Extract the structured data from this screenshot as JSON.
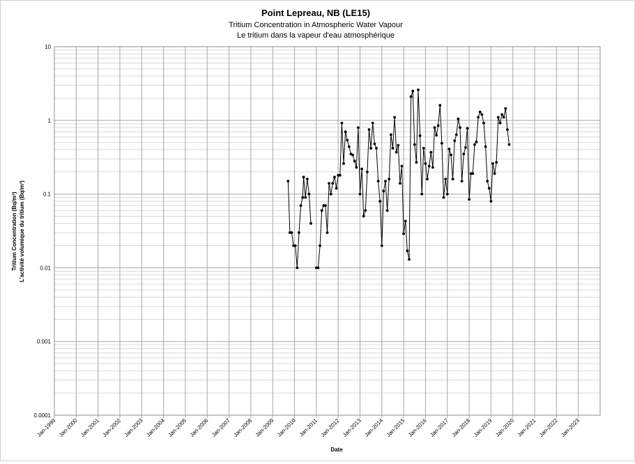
{
  "chart_data": {
    "type": "line",
    "title": "Point Lepreau, NB (LE15)",
    "subtitle": [
      "Tritium Concentration in Atmospheric Water Vapour",
      "Le tritium dans la vapeur d'eau atmosphérique"
    ],
    "xlabel": "Date",
    "ylabel": [
      "Tritium Concentration (Bq/m³)",
      "L'activité volumique du tritium (Bq/m³)"
    ],
    "yscale": "log",
    "ylim": [
      0.0001,
      10
    ],
    "yticks": [
      {
        "value": 10,
        "label": "10"
      },
      {
        "value": 1,
        "label": "1"
      },
      {
        "value": 0.1,
        "label": "0.1"
      },
      {
        "value": 0.01,
        "label": "0.01"
      },
      {
        "value": 0.001,
        "label": "0.001"
      },
      {
        "value": 0.0001,
        "label": "0.0001"
      }
    ],
    "xlim": [
      "Jan-1999",
      "Jan-2024"
    ],
    "xticks": [
      "Jan-1999",
      "Jan-2000",
      "Jan-2001",
      "Jan-2002",
      "Jan-2003",
      "Jan-2004",
      "Jan-2005",
      "Jan-2006",
      "Jan-2007",
      "Jan-2008",
      "Jan-2009",
      "Jan-2010",
      "Jan-2011",
      "Jan-2012",
      "Jan-2013",
      "Jan-2014",
      "Jan-2015",
      "Jan-2016",
      "Jan-2017",
      "Jan-2018",
      "Jan-2019",
      "Jan-2020",
      "Jan-2021",
      "Jan-2022",
      "Jan-2023"
    ],
    "grid": true,
    "legend": "none",
    "colors": {
      "line": "#000000",
      "marker": "#000000",
      "grid_major": "#a6a6a6",
      "grid_minor": "#d9d9d9"
    },
    "series": [
      {
        "points": [
          [
            "2009-09-15",
            0.15
          ],
          [
            "2009-10-15",
            0.03
          ],
          [
            "2009-11-15",
            0.03
          ],
          [
            "2009-12-15",
            0.02
          ],
          [
            "2010-01-15",
            0.02
          ],
          [
            "2010-02-15",
            0.01
          ],
          [
            "2010-03-15",
            0.03
          ],
          [
            "2010-04-15",
            0.07
          ],
          [
            "2010-05-15",
            0.09
          ],
          [
            "2010-06-01",
            0.17
          ],
          [
            "2010-07-01",
            0.09
          ],
          [
            "2010-08-01",
            0.16
          ],
          [
            "2010-09-01",
            0.1
          ],
          [
            "2010-10-01",
            0.04
          ],
          [
            "2011-01-01",
            0.01
          ],
          [
            "2011-02-01",
            0.01
          ],
          [
            "2011-03-01",
            0.02
          ],
          [
            "2011-04-01",
            0.06
          ],
          [
            "2011-05-01",
            0.07
          ],
          [
            "2011-06-01",
            0.07
          ],
          [
            "2011-07-01",
            0.03
          ],
          [
            "2011-08-01",
            0.14
          ],
          [
            "2011-09-01",
            0.1
          ],
          [
            "2011-10-01",
            0.14
          ],
          [
            "2011-11-01",
            0.17
          ],
          [
            "2011-12-01",
            0.12
          ],
          [
            "2012-01-01",
            0.18
          ],
          [
            "2012-02-01",
            0.18
          ],
          [
            "2012-03-01",
            0.92
          ],
          [
            "2012-04-01",
            0.26
          ],
          [
            "2012-05-01",
            0.7
          ],
          [
            "2012-06-01",
            0.54
          ],
          [
            "2012-07-01",
            0.44
          ],
          [
            "2012-08-01",
            0.35
          ],
          [
            "2012-09-01",
            0.34
          ],
          [
            "2012-10-01",
            0.28
          ],
          [
            "2012-11-01",
            0.23
          ],
          [
            "2012-12-01",
            0.8
          ],
          [
            "2013-01-01",
            0.1
          ],
          [
            "2013-02-01",
            0.22
          ],
          [
            "2013-03-01",
            0.05
          ],
          [
            "2013-04-01",
            0.06
          ],
          [
            "2013-05-01",
            0.2
          ],
          [
            "2013-06-01",
            0.75
          ],
          [
            "2013-07-01",
            0.42
          ],
          [
            "2013-08-01",
            0.92
          ],
          [
            "2013-09-01",
            0.48
          ],
          [
            "2013-10-01",
            0.42
          ],
          [
            "2013-11-01",
            0.15
          ],
          [
            "2013-12-01",
            0.08
          ],
          [
            "2014-01-01",
            0.02
          ],
          [
            "2014-02-01",
            0.11
          ],
          [
            "2014-03-01",
            0.15
          ],
          [
            "2014-04-01",
            0.06
          ],
          [
            "2014-05-01",
            0.16
          ],
          [
            "2014-06-01",
            0.64
          ],
          [
            "2014-07-01",
            0.42
          ],
          [
            "2014-08-01",
            1.1
          ],
          [
            "2014-09-01",
            0.37
          ],
          [
            "2014-10-01",
            0.46
          ],
          [
            "2014-11-01",
            0.14
          ],
          [
            "2014-12-01",
            0.24
          ],
          [
            "2015-01-01",
            0.029
          ],
          [
            "2015-02-01",
            0.043
          ],
          [
            "2015-03-01",
            0.017
          ],
          [
            "2015-04-01",
            0.013
          ],
          [
            "2015-05-01",
            2.1
          ],
          [
            "2015-06-01",
            2.5
          ],
          [
            "2015-07-01",
            0.47
          ],
          [
            "2015-08-01",
            0.27
          ],
          [
            "2015-09-01",
            2.6
          ],
          [
            "2015-10-01",
            0.62
          ],
          [
            "2015-11-01",
            0.1
          ],
          [
            "2015-12-01",
            0.42
          ],
          [
            "2016-01-01",
            0.26
          ],
          [
            "2016-02-01",
            0.16
          ],
          [
            "2016-03-01",
            0.24
          ],
          [
            "2016-04-01",
            0.37
          ],
          [
            "2016-05-01",
            0.23
          ],
          [
            "2016-06-01",
            0.8
          ],
          [
            "2016-07-01",
            0.63
          ],
          [
            "2016-08-01",
            0.85
          ],
          [
            "2016-09-01",
            1.6
          ],
          [
            "2016-10-01",
            0.49
          ],
          [
            "2016-11-01",
            0.09
          ],
          [
            "2016-12-01",
            0.16
          ],
          [
            "2017-01-01",
            0.1
          ],
          [
            "2017-02-01",
            0.41
          ],
          [
            "2017-03-01",
            0.34
          ],
          [
            "2017-04-01",
            0.16
          ],
          [
            "2017-05-01",
            0.53
          ],
          [
            "2017-06-01",
            0.64
          ],
          [
            "2017-07-01",
            1.05
          ],
          [
            "2017-08-01",
            0.8
          ],
          [
            "2017-09-01",
            0.15
          ],
          [
            "2017-10-01",
            0.35
          ],
          [
            "2017-11-01",
            0.43
          ],
          [
            "2017-12-01",
            0.78
          ],
          [
            "2018-01-01",
            0.085
          ],
          [
            "2018-02-01",
            0.19
          ],
          [
            "2018-03-01",
            0.19
          ],
          [
            "2018-04-01",
            0.47
          ],
          [
            "2018-05-01",
            0.51
          ],
          [
            "2018-06-01",
            1.1
          ],
          [
            "2018-07-01",
            1.3
          ],
          [
            "2018-08-01",
            1.2
          ],
          [
            "2018-09-01",
            0.92
          ],
          [
            "2018-10-01",
            0.44
          ],
          [
            "2018-11-01",
            0.15
          ],
          [
            "2018-12-01",
            0.12
          ],
          [
            "2019-01-01",
            0.08
          ],
          [
            "2019-02-01",
            0.26
          ],
          [
            "2019-03-01",
            0.19
          ],
          [
            "2019-04-01",
            0.27
          ],
          [
            "2019-05-01",
            1.1
          ],
          [
            "2019-06-01",
            0.92
          ],
          [
            "2019-07-01",
            1.2
          ],
          [
            "2019-08-01",
            1.1
          ],
          [
            "2019-09-01",
            1.45
          ],
          [
            "2019-10-01",
            0.75
          ],
          [
            "2019-11-01",
            0.47
          ]
        ]
      }
    ]
  }
}
